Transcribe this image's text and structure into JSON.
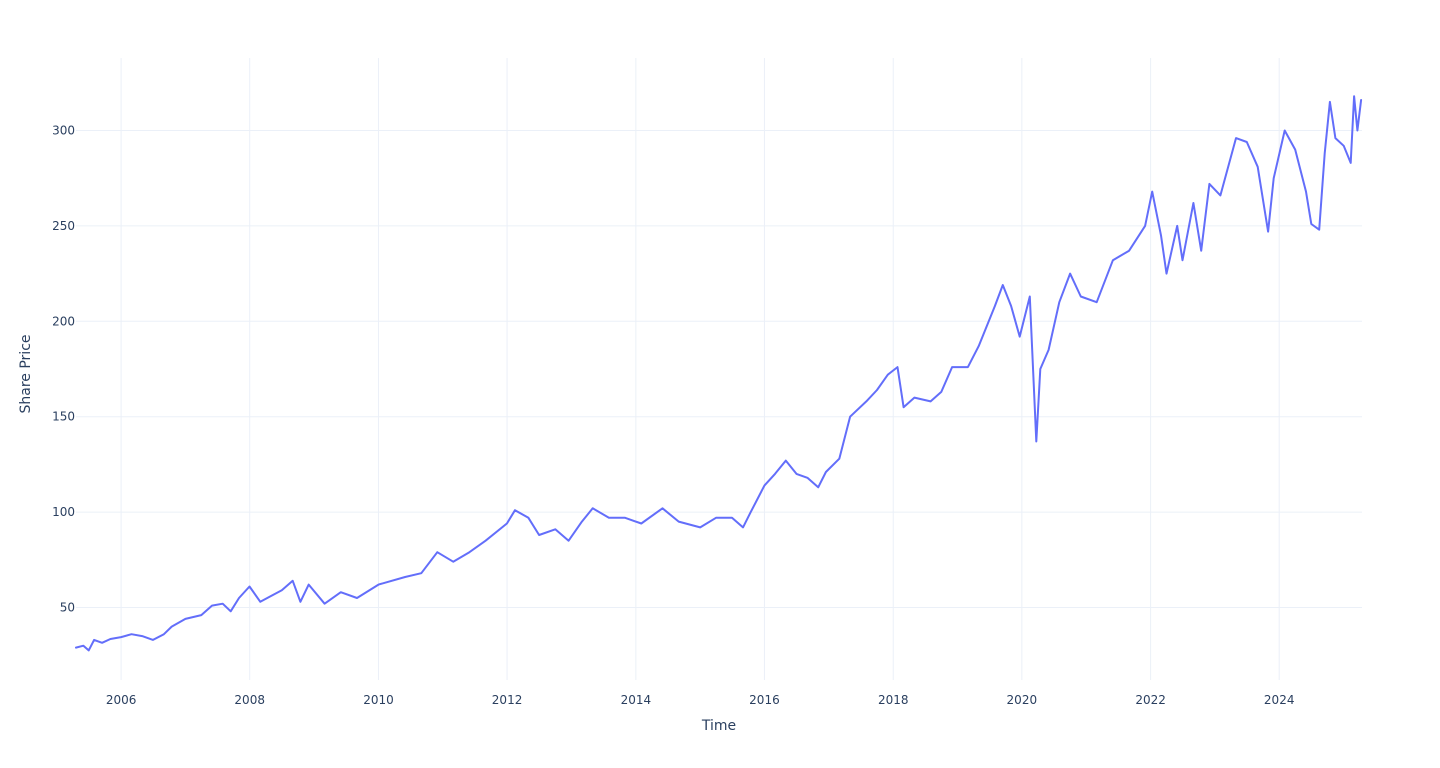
{
  "chart_data": {
    "type": "line",
    "title": "",
    "xlabel": "Time",
    "ylabel": "Share Price",
    "x_axis": {
      "type": "date",
      "range": [
        "2005-04-20",
        "2025-04-15"
      ],
      "tick_dates": [
        "2006-01-01",
        "2008-01-01",
        "2010-01-01",
        "2012-01-01",
        "2014-01-01",
        "2016-01-01",
        "2018-01-01",
        "2020-01-01",
        "2022-01-01",
        "2024-01-01"
      ],
      "tick_labels": [
        "2006",
        "2008",
        "2010",
        "2012",
        "2014",
        "2016",
        "2018",
        "2020",
        "2022",
        "2024"
      ]
    },
    "y_axis": {
      "range": [
        12,
        338
      ],
      "ticks": [
        50,
        100,
        150,
        200,
        250,
        300
      ],
      "tick_labels": [
        "50",
        "100",
        "150",
        "200",
        "250",
        "300"
      ]
    },
    "grid": true,
    "legend": "none",
    "colors": {
      "line": "#636efa",
      "grid": "#ebf0f8",
      "text": "#2a3f5f"
    },
    "series": [
      {
        "points": [
          [
            "2005-04-20",
            29
          ],
          [
            "2005-06-01",
            30
          ],
          [
            "2005-07-01",
            27.5
          ],
          [
            "2005-08-01",
            33
          ],
          [
            "2005-09-15",
            31.5
          ],
          [
            "2005-11-01",
            33.5
          ],
          [
            "2006-01-01",
            34.5
          ],
          [
            "2006-03-01",
            36
          ],
          [
            "2006-05-01",
            35
          ],
          [
            "2006-07-01",
            33
          ],
          [
            "2006-09-01",
            36
          ],
          [
            "2006-10-15",
            40
          ],
          [
            "2007-01-01",
            44
          ],
          [
            "2007-04-01",
            46
          ],
          [
            "2007-06-01",
            51
          ],
          [
            "2007-08-01",
            52
          ],
          [
            "2007-09-15",
            48
          ],
          [
            "2007-11-01",
            55
          ],
          [
            "2007-12-31",
            61
          ],
          [
            "2008-03-01",
            53
          ],
          [
            "2008-05-01",
            56
          ],
          [
            "2008-07-01",
            59
          ],
          [
            "2008-09-01",
            64
          ],
          [
            "2008-10-15",
            53
          ],
          [
            "2008-12-01",
            62
          ],
          [
            "2009-03-01",
            52
          ],
          [
            "2009-06-01",
            58
          ],
          [
            "2009-09-01",
            55
          ],
          [
            "2010-01-01",
            62
          ],
          [
            "2010-06-01",
            66
          ],
          [
            "2010-09-01",
            68
          ],
          [
            "2010-12-01",
            79
          ],
          [
            "2011-03-01",
            74
          ],
          [
            "2011-06-01",
            79
          ],
          [
            "2011-09-01",
            85
          ],
          [
            "2011-12-31",
            94
          ],
          [
            "2012-02-15",
            101
          ],
          [
            "2012-05-01",
            97
          ],
          [
            "2012-07-01",
            88
          ],
          [
            "2012-10-01",
            91
          ],
          [
            "2012-12-15",
            85
          ],
          [
            "2013-03-01",
            95
          ],
          [
            "2013-05-01",
            102
          ],
          [
            "2013-08-01",
            97
          ],
          [
            "2013-11-01",
            97
          ],
          [
            "2014-02-01",
            94
          ],
          [
            "2014-06-01",
            102
          ],
          [
            "2014-09-01",
            95
          ],
          [
            "2015-01-01",
            92
          ],
          [
            "2015-04-01",
            97
          ],
          [
            "2015-07-01",
            97
          ],
          [
            "2015-09-01",
            92
          ],
          [
            "2015-10-15",
            100
          ],
          [
            "2016-01-01",
            114
          ],
          [
            "2016-03-01",
            120
          ],
          [
            "2016-05-01",
            127
          ],
          [
            "2016-07-01",
            120
          ],
          [
            "2016-09-01",
            118
          ],
          [
            "2016-11-01",
            113
          ],
          [
            "2016-12-15",
            121
          ],
          [
            "2017-03-01",
            128
          ],
          [
            "2017-05-01",
            150
          ],
          [
            "2017-08-01",
            158
          ],
          [
            "2017-10-01",
            164
          ],
          [
            "2017-12-01",
            172
          ],
          [
            "2018-01-25",
            176
          ],
          [
            "2018-03-01",
            155
          ],
          [
            "2018-05-01",
            160
          ],
          [
            "2018-08-01",
            158
          ],
          [
            "2018-10-01",
            163
          ],
          [
            "2018-12-01",
            176
          ],
          [
            "2019-03-01",
            176
          ],
          [
            "2019-05-01",
            187
          ],
          [
            "2019-08-01",
            208
          ],
          [
            "2019-09-15",
            219
          ],
          [
            "2019-11-01",
            208
          ],
          [
            "2019-12-20",
            192
          ],
          [
            "2020-02-15",
            213
          ],
          [
            "2020-03-23",
            137
          ],
          [
            "2020-04-15",
            175
          ],
          [
            "2020-06-01",
            185
          ],
          [
            "2020-08-01",
            210
          ],
          [
            "2020-10-01",
            225
          ],
          [
            "2020-12-01",
            213
          ],
          [
            "2021-03-01",
            210
          ],
          [
            "2021-06-01",
            232
          ],
          [
            "2021-09-01",
            237
          ],
          [
            "2021-12-01",
            250
          ],
          [
            "2022-01-10",
            268
          ],
          [
            "2022-03-01",
            245
          ],
          [
            "2022-04-01",
            225
          ],
          [
            "2022-06-01",
            250
          ],
          [
            "2022-07-01",
            232
          ],
          [
            "2022-09-01",
            262
          ],
          [
            "2022-10-15",
            237
          ],
          [
            "2022-12-01",
            272
          ],
          [
            "2023-02-01",
            266
          ],
          [
            "2023-05-01",
            296
          ],
          [
            "2023-07-01",
            294
          ],
          [
            "2023-09-01",
            281
          ],
          [
            "2023-10-30",
            247
          ],
          [
            "2023-12-01",
            275
          ],
          [
            "2024-02-01",
            300
          ],
          [
            "2024-04-01",
            290
          ],
          [
            "2024-06-01",
            268
          ],
          [
            "2024-07-01",
            251
          ],
          [
            "2024-08-15",
            248
          ],
          [
            "2024-09-15",
            288
          ],
          [
            "2024-10-15",
            315
          ],
          [
            "2024-11-15",
            296
          ],
          [
            "2025-01-01",
            292
          ],
          [
            "2025-02-10",
            283
          ],
          [
            "2025-03-01",
            318
          ],
          [
            "2025-03-20",
            300
          ],
          [
            "2025-04-10",
            316
          ]
        ]
      }
    ]
  }
}
